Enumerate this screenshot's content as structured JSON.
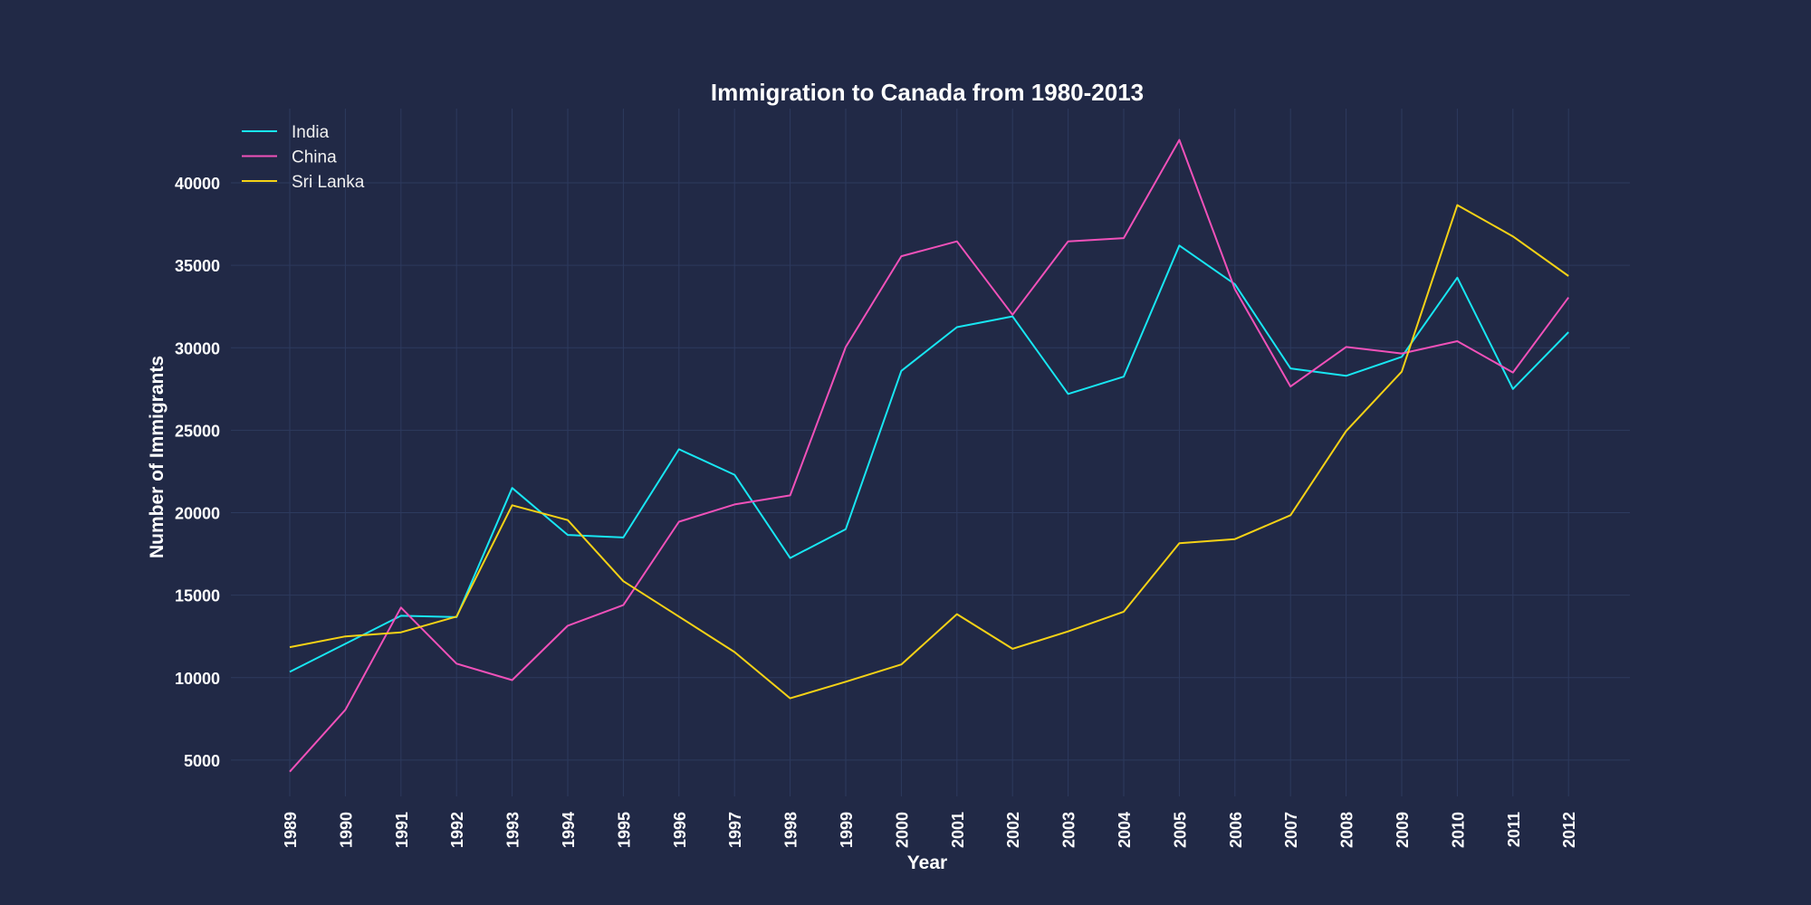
{
  "chart_data": {
    "type": "line",
    "title": "Immigration to Canada from 1980-2013",
    "xlabel": "Year",
    "ylabel": "Number of Immigrants",
    "x": [
      "1989",
      "1990",
      "1991",
      "1992",
      "1993",
      "1994",
      "1995",
      "1996",
      "1997",
      "1998",
      "1999",
      "2000",
      "2001",
      "2002",
      "2003",
      "2004",
      "2005",
      "2006",
      "2007",
      "2008",
      "2009",
      "2010",
      "2011",
      "2012"
    ],
    "yticks": [
      "5000",
      "10000",
      "15000",
      "20000",
      "25000",
      "30000",
      "35000",
      "40000"
    ],
    "ylim": [
      2800,
      44500
    ],
    "grid": true,
    "legend": "top-left",
    "series": [
      {
        "name": "India",
        "color": "#18e6f2",
        "values": [
          10350,
          12050,
          13750,
          13670,
          21500,
          18650,
          18500,
          23850,
          22300,
          17250,
          19000,
          28600,
          31250,
          31900,
          27200,
          28250,
          36200,
          33850,
          28750,
          28300,
          29450,
          34250,
          27500,
          30950
        ]
      },
      {
        "name": "China",
        "color": "#f051b9",
        "values": [
          4300,
          8050,
          14250,
          10850,
          9850,
          13150,
          14400,
          19450,
          20500,
          21050,
          30050,
          35550,
          36450,
          32000,
          36450,
          36650,
          42600,
          33550,
          27650,
          30050,
          29650,
          30400,
          28500,
          33050
        ]
      },
      {
        "name": "Sri Lanka",
        "color": "#f5d216",
        "values": [
          11850,
          12500,
          12750,
          13700,
          20450,
          19550,
          15850,
          13700,
          11550,
          8750,
          9750,
          10800,
          13850,
          11750,
          12800,
          14000,
          18150,
          18400,
          19850,
          24950,
          28550,
          38650,
          36750,
          34350
        ]
      }
    ]
  }
}
